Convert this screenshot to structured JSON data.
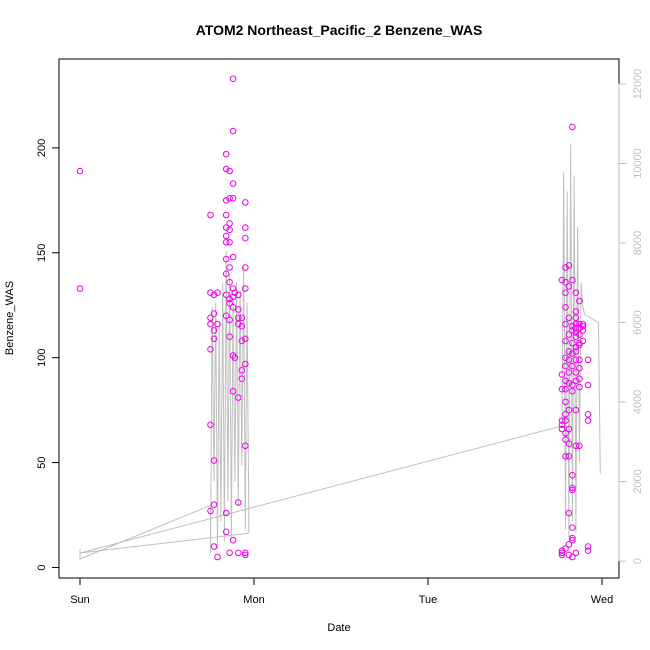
{
  "chart_data": {
    "type": "scatter",
    "title": "ATOM2 Northeast_Pacific_2 Benzene_WAS",
    "xlabel": "Date",
    "ylabel": "Benzene_WAS",
    "x_ticks": [
      "Sun",
      "Mon",
      "Tue",
      "Wed"
    ],
    "x_range_days": [
      0,
      3.1
    ],
    "ylim": [
      0,
      230
    ],
    "y_ticks": [
      0,
      50,
      100,
      150,
      200
    ],
    "y2lim": [
      0,
      12000
    ],
    "y2_ticks": [
      0,
      2000,
      4000,
      6000,
      8000,
      10000,
      12000
    ],
    "grid": false,
    "legend": "none",
    "colors": {
      "points": "#ee00ee",
      "line": "#bfbfbf",
      "axes": "#000000",
      "right_axis": "#bfbfbf"
    },
    "series": [
      {
        "kind": "points",
        "points": [
          [
            0.0,
            189
          ],
          [
            0.0,
            133
          ],
          [
            0.75,
            168
          ],
          [
            0.75,
            131
          ],
          [
            0.75,
            119
          ],
          [
            0.75,
            116
          ],
          [
            0.75,
            104
          ],
          [
            0.75,
            68
          ],
          [
            0.75,
            27
          ],
          [
            0.77,
            130
          ],
          [
            0.77,
            121
          ],
          [
            0.77,
            113
          ],
          [
            0.77,
            109
          ],
          [
            0.77,
            51
          ],
          [
            0.77,
            30
          ],
          [
            0.77,
            10
          ],
          [
            0.79,
            131
          ],
          [
            0.79,
            116
          ],
          [
            0.79,
            5
          ],
          [
            0.84,
            197
          ],
          [
            0.84,
            190
          ],
          [
            0.84,
            175
          ],
          [
            0.84,
            168
          ],
          [
            0.84,
            162
          ],
          [
            0.84,
            158
          ],
          [
            0.84,
            155
          ],
          [
            0.84,
            147
          ],
          [
            0.84,
            140
          ],
          [
            0.84,
            130
          ],
          [
            0.84,
            120
          ],
          [
            0.84,
            26
          ],
          [
            0.84,
            17
          ],
          [
            0.86,
            189
          ],
          [
            0.86,
            176
          ],
          [
            0.86,
            164
          ],
          [
            0.86,
            161
          ],
          [
            0.86,
            155
          ],
          [
            0.86,
            143
          ],
          [
            0.86,
            136
          ],
          [
            0.86,
            128
          ],
          [
            0.86,
            126
          ],
          [
            0.86,
            118
          ],
          [
            0.86,
            110
          ],
          [
            0.86,
            7
          ],
          [
            0.88,
            233
          ],
          [
            0.88,
            208
          ],
          [
            0.88,
            183
          ],
          [
            0.88,
            176
          ],
          [
            0.88,
            148
          ],
          [
            0.88,
            133
          ],
          [
            0.88,
            129
          ],
          [
            0.88,
            124
          ],
          [
            0.88,
            101
          ],
          [
            0.88,
            84
          ],
          [
            0.88,
            13
          ],
          [
            0.89,
            131
          ],
          [
            0.89,
            100
          ],
          [
            0.91,
            130
          ],
          [
            0.91,
            123
          ],
          [
            0.91,
            119
          ],
          [
            0.91,
            116
          ],
          [
            0.91,
            81
          ],
          [
            0.91,
            31
          ],
          [
            0.91,
            7
          ],
          [
            0.93,
            119
          ],
          [
            0.93,
            115
          ],
          [
            0.93,
            108
          ],
          [
            0.93,
            94
          ],
          [
            0.93,
            90
          ],
          [
            0.95,
            174
          ],
          [
            0.95,
            162
          ],
          [
            0.95,
            157
          ],
          [
            0.95,
            143
          ],
          [
            0.95,
            133
          ],
          [
            0.95,
            109
          ],
          [
            0.95,
            97
          ],
          [
            0.95,
            58
          ],
          [
            0.95,
            7
          ],
          [
            0.95,
            6
          ],
          [
            2.77,
            137
          ],
          [
            2.77,
            92
          ],
          [
            2.77,
            85
          ],
          [
            2.77,
            70
          ],
          [
            2.77,
            68
          ],
          [
            2.77,
            66
          ],
          [
            2.77,
            8
          ],
          [
            2.77,
            7
          ],
          [
            2.77,
            6
          ],
          [
            2.79,
            143
          ],
          [
            2.79,
            136
          ],
          [
            2.79,
            131
          ],
          [
            2.79,
            124
          ],
          [
            2.79,
            116
          ],
          [
            2.79,
            108
          ],
          [
            2.79,
            100
          ],
          [
            2.79,
            96
          ],
          [
            2.79,
            89
          ],
          [
            2.79,
            85
          ],
          [
            2.79,
            79
          ],
          [
            2.79,
            73
          ],
          [
            2.79,
            70
          ],
          [
            2.79,
            64
          ],
          [
            2.79,
            61
          ],
          [
            2.79,
            53
          ],
          [
            2.79,
            9
          ],
          [
            2.81,
            144
          ],
          [
            2.81,
            134
          ],
          [
            2.81,
            119
          ],
          [
            2.81,
            111
          ],
          [
            2.81,
            103
          ],
          [
            2.81,
            99
          ],
          [
            2.81,
            93
          ],
          [
            2.81,
            88
          ],
          [
            2.81,
            75
          ],
          [
            2.81,
            66
          ],
          [
            2.81,
            59
          ],
          [
            2.81,
            53
          ],
          [
            2.81,
            26
          ],
          [
            2.81,
            11
          ],
          [
            2.81,
            6
          ],
          [
            2.83,
            210
          ],
          [
            2.83,
            137
          ],
          [
            2.83,
            115
          ],
          [
            2.83,
            113
          ],
          [
            2.83,
            107
          ],
          [
            2.83,
            102
          ],
          [
            2.83,
            96
          ],
          [
            2.83,
            87
          ],
          [
            2.83,
            84
          ],
          [
            2.83,
            44
          ],
          [
            2.83,
            38
          ],
          [
            2.83,
            37
          ],
          [
            2.83,
            19
          ],
          [
            2.83,
            14
          ],
          [
            2.83,
            13
          ],
          [
            2.83,
            5
          ],
          [
            2.85,
            131
          ],
          [
            2.85,
            122
          ],
          [
            2.85,
            119
          ],
          [
            2.85,
            116
          ],
          [
            2.85,
            114
          ],
          [
            2.85,
            112
          ],
          [
            2.85,
            110
          ],
          [
            2.85,
            105
          ],
          [
            2.85,
            103
          ],
          [
            2.85,
            99
          ],
          [
            2.85,
            93
          ],
          [
            2.85,
            89
          ],
          [
            2.85,
            75
          ],
          [
            2.85,
            58
          ],
          [
            2.85,
            7
          ],
          [
            2.87,
            127
          ],
          [
            2.87,
            116
          ],
          [
            2.87,
            114
          ],
          [
            2.87,
            111
          ],
          [
            2.87,
            107
          ],
          [
            2.87,
            106
          ],
          [
            2.87,
            99
          ],
          [
            2.87,
            95
          ],
          [
            2.87,
            90
          ],
          [
            2.87,
            86
          ],
          [
            2.87,
            58
          ],
          [
            2.89,
            116
          ],
          [
            2.89,
            115
          ],
          [
            2.89,
            113
          ],
          [
            2.89,
            108
          ],
          [
            2.92,
            99
          ],
          [
            2.92,
            87
          ],
          [
            2.92,
            73
          ],
          [
            2.92,
            70
          ],
          [
            2.92,
            10
          ],
          [
            2.92,
            8
          ]
        ]
      },
      {
        "kind": "line",
        "axis": "right",
        "points": [
          [
            0.0,
            300
          ],
          [
            0.0,
            50
          ],
          [
            0.75,
            1400
          ],
          [
            0.75,
            200
          ],
          [
            0.76,
            6400
          ],
          [
            0.77,
            2000
          ],
          [
            0.78,
            6500
          ],
          [
            0.79,
            300
          ],
          [
            0.8,
            6000
          ],
          [
            0.81,
            1000
          ],
          [
            0.82,
            7000
          ],
          [
            0.83,
            500
          ],
          [
            0.84,
            7800
          ],
          [
            0.85,
            1500
          ],
          [
            0.86,
            7200
          ],
          [
            0.87,
            600
          ],
          [
            0.88,
            6600
          ],
          [
            0.89,
            2000
          ],
          [
            0.9,
            7000
          ],
          [
            0.91,
            1400
          ],
          [
            0.92,
            6800
          ],
          [
            0.93,
            2400
          ],
          [
            0.94,
            7400
          ],
          [
            0.95,
            800
          ],
          [
            0.96,
            6500
          ],
          [
            0.97,
            1200
          ],
          [
            0.97,
            700
          ],
          [
            0.0,
            200
          ],
          [
            2.77,
            3400
          ],
          [
            2.78,
            9800
          ],
          [
            2.79,
            800
          ],
          [
            2.8,
            9300
          ],
          [
            2.81,
            600
          ],
          [
            2.82,
            10500
          ],
          [
            2.83,
            1000
          ],
          [
            2.84,
            9700
          ],
          [
            2.85,
            700
          ],
          [
            2.86,
            8400
          ],
          [
            2.87,
            2500
          ],
          [
            2.88,
            7000
          ],
          [
            2.89,
            6400
          ],
          [
            2.9,
            6200
          ],
          [
            2.98,
            6000
          ],
          [
            2.99,
            2200
          ]
        ]
      }
    ]
  }
}
